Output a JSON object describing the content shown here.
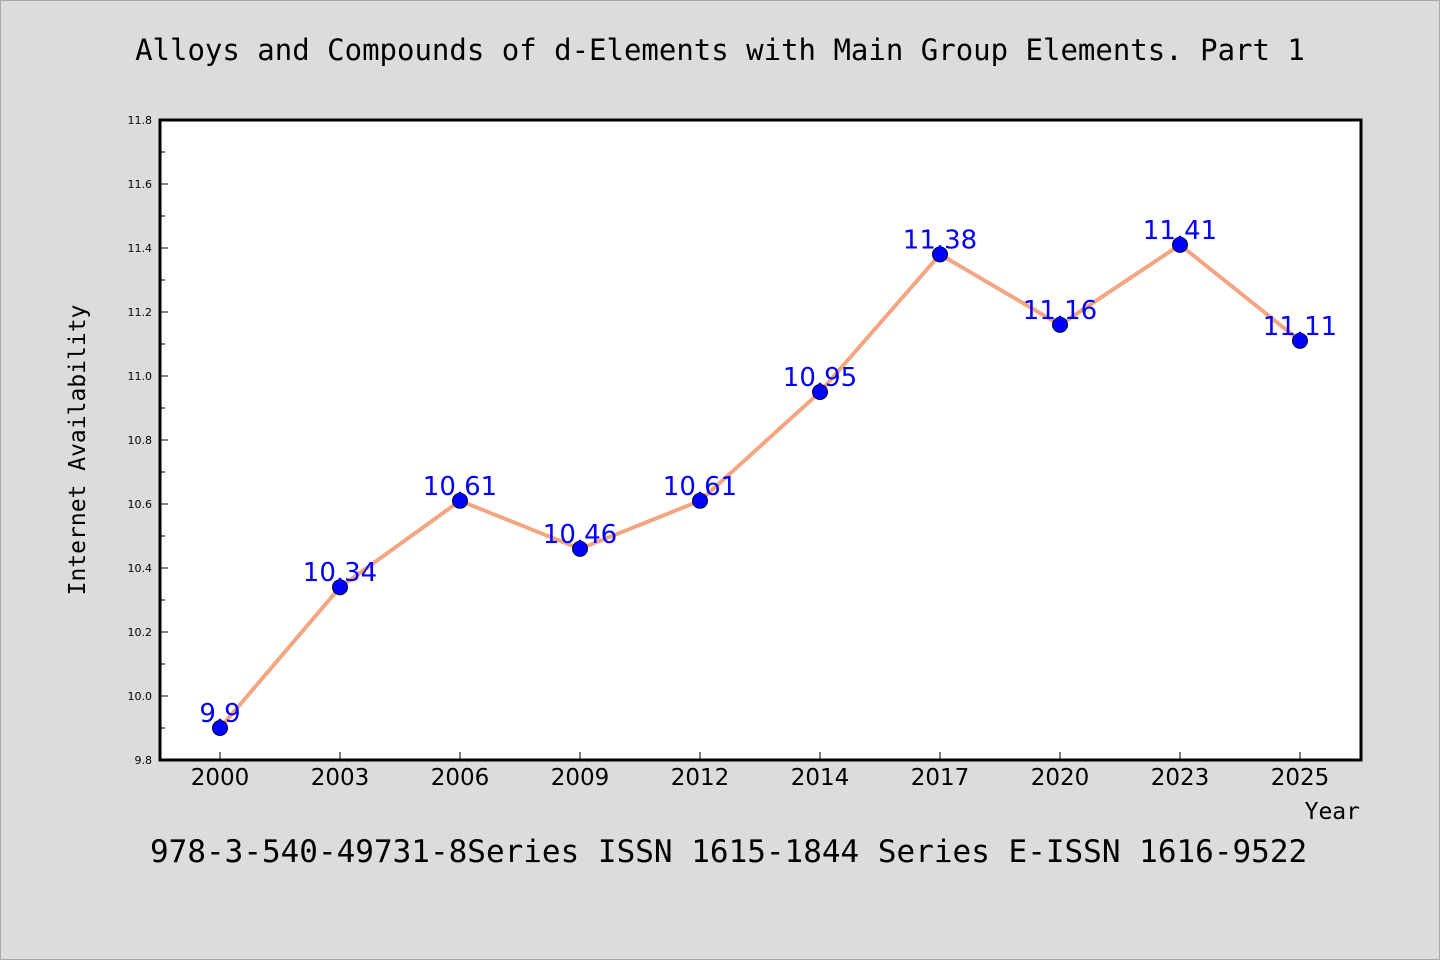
{
  "title": "Alloys and Compounds of d-Elements with Main Group Elements. Part 1",
  "footer": "978-3-540-49731-8Series ISSN 1615-1844 Series E-ISSN 1616-9522",
  "colors": {
    "background": "#dcdcdc",
    "plot_background": "#ffffff",
    "line": "#f4a582",
    "marker": "#0000ff",
    "data_label": "#0000ff"
  },
  "chart_data": {
    "type": "line",
    "title": "Alloys and Compounds of d-Elements with Main Group Elements. Part 1",
    "xlabel": "Year",
    "ylabel": "Internet Availability",
    "categories": [
      "2000",
      "2003",
      "2006",
      "2009",
      "2012",
      "2014",
      "2017",
      "2020",
      "2023",
      "2025"
    ],
    "values": [
      9.9,
      10.34,
      10.61,
      10.46,
      10.61,
      10.95,
      11.38,
      11.16,
      11.41,
      11.11
    ],
    "data_labels": [
      "9.9",
      "10.34",
      "10.61",
      "10.46",
      "10.61",
      "10.95",
      "11.38",
      "11.16",
      "11.41",
      "11.11"
    ],
    "ylim": [
      9.8,
      11.8
    ],
    "yticks": [
      "9.8",
      "10.0",
      "10.2",
      "10.4",
      "10.6",
      "10.8",
      "11.0",
      "11.2",
      "11.4",
      "11.6",
      "11.8"
    ],
    "grid": false,
    "legend": "none"
  }
}
